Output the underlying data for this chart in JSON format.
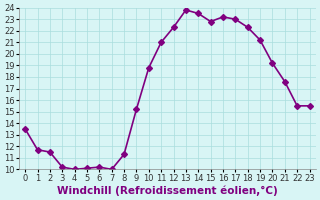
{
  "x": [
    0,
    1,
    2,
    3,
    4,
    5,
    6,
    7,
    8,
    9,
    10,
    11,
    12,
    13,
    14,
    15,
    16,
    17,
    18,
    19,
    20,
    21,
    22,
    23
  ],
  "y": [
    13.5,
    11.7,
    11.5,
    10.2,
    10.0,
    10.1,
    10.2,
    10.0,
    11.3,
    15.2,
    18.8,
    21.0,
    22.3,
    23.8,
    23.5,
    22.8,
    23.2,
    23.0,
    22.3,
    21.2,
    19.2,
    17.6,
    15.5,
    15.5
  ],
  "line_color": "#800080",
  "marker": "D",
  "marker_size": 3,
  "bg_color": "#d8f5f5",
  "grid_color": "#aadddd",
  "xlabel": "Windchill (Refroidissement éolien,°C)",
  "xlim": [
    -0.5,
    23.5
  ],
  "ylim": [
    10,
    24
  ],
  "yticks": [
    10,
    11,
    12,
    13,
    14,
    15,
    16,
    17,
    18,
    19,
    20,
    21,
    22,
    23,
    24
  ],
  "xticks": [
    0,
    1,
    2,
    3,
    4,
    5,
    6,
    7,
    8,
    9,
    10,
    11,
    12,
    13,
    14,
    15,
    16,
    17,
    18,
    19,
    20,
    21,
    22,
    23
  ],
  "tick_label_size": 6.0,
  "xlabel_size": 7.5,
  "line_width": 1.2
}
